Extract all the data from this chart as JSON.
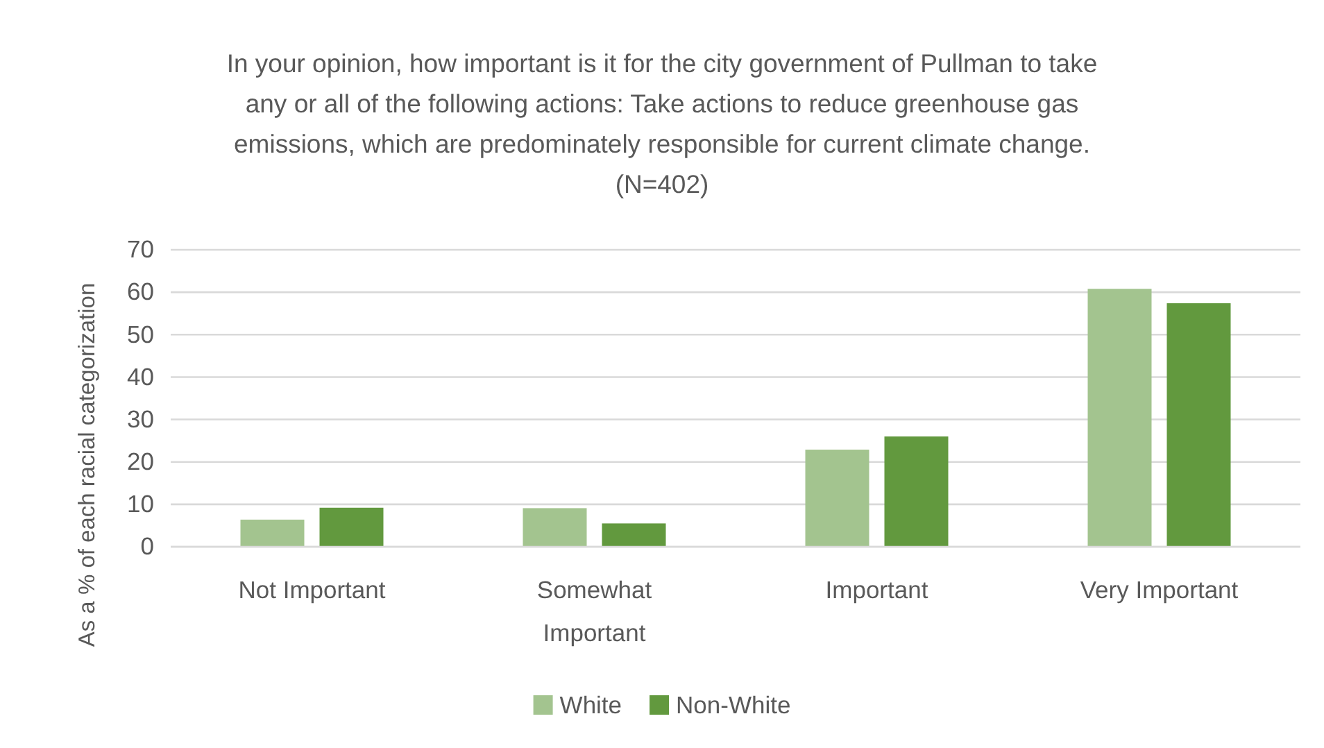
{
  "chart_data": {
    "type": "bar",
    "title": "In your opinion, how important is it for the city government of Pullman to take any or all of the following actions: Take actions to reduce greenhouse gas emissions, which are predominately responsible for current climate change. (N=402)",
    "ylabel": "As a % of each racial categorization",
    "categories": [
      "Not Important",
      "Somewhat Important",
      "Important",
      "Very Important"
    ],
    "series": [
      {
        "name": "White",
        "color": "#a3c48f",
        "values": [
          6.4,
          9.1,
          22.9,
          60.8
        ]
      },
      {
        "name": "Non-White",
        "color": "#62993e",
        "values": [
          9.2,
          5.5,
          26.0,
          57.4
        ]
      }
    ],
    "ylim": [
      0,
      70
    ],
    "yticks": [
      0,
      10,
      20,
      30,
      40,
      50,
      60,
      70
    ],
    "grid": "y",
    "legend": "bottom"
  }
}
